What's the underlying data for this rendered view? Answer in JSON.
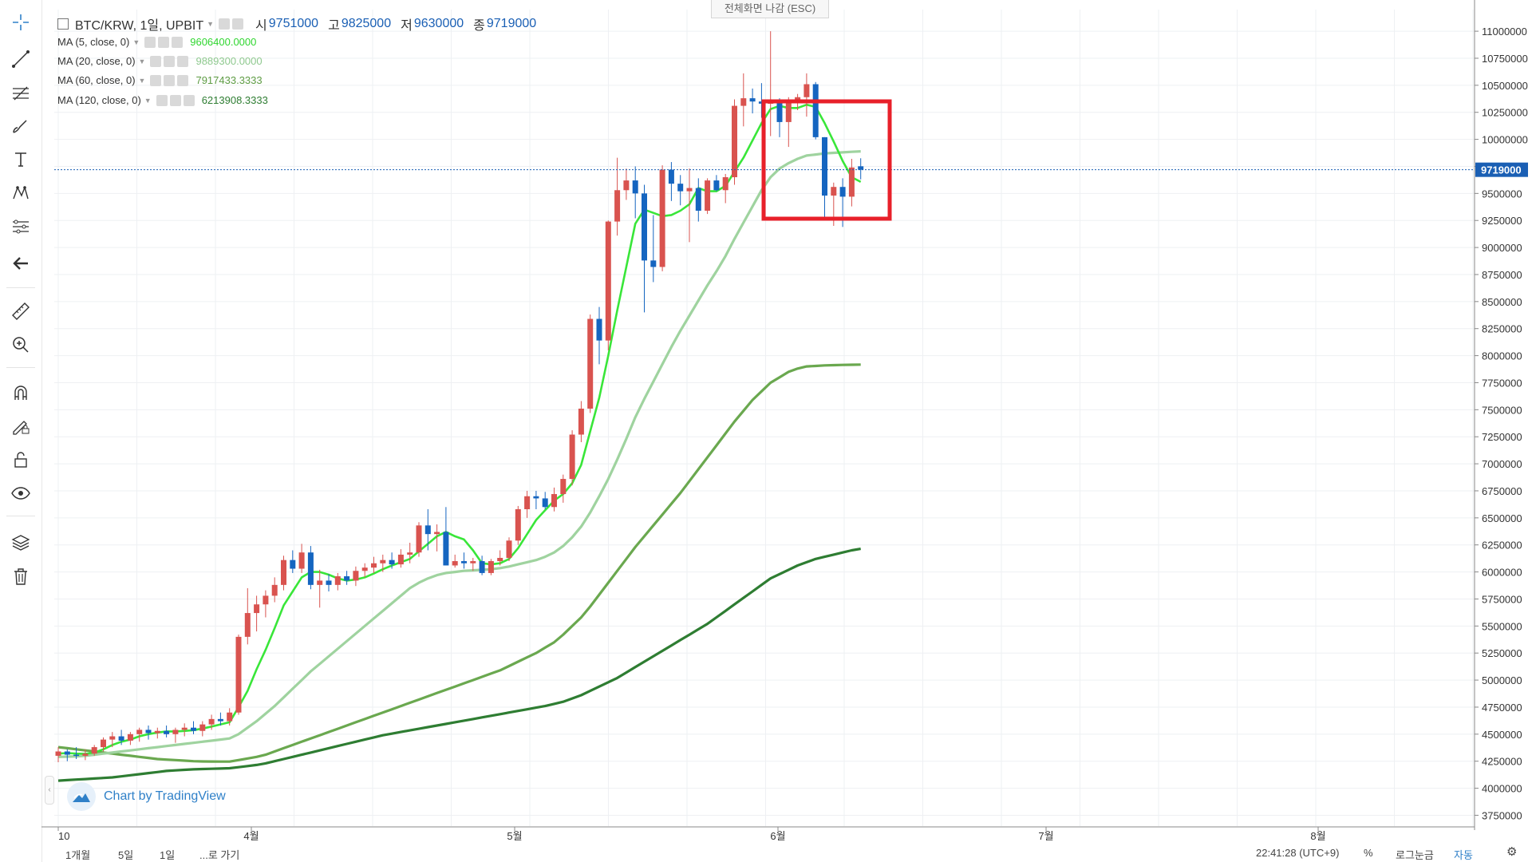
{
  "symbol_legend": {
    "title": "BTC/KRW, 1일, UPBIT",
    "open_label": "시",
    "open_value": "9751000",
    "high_label": "고",
    "high_value": "9825000",
    "low_label": "저",
    "low_value": "9630000",
    "close_label": "종",
    "close_value": "9719000"
  },
  "indicators": [
    {
      "label": "MA (5, close, 0)",
      "value": "9606400.0000",
      "color": "#39e639"
    },
    {
      "label": "MA (20, close, 0)",
      "value": "9889300.0000",
      "color": "#9fd39f"
    },
    {
      "label": "MA (60, close, 0)",
      "value": "7917433.3333",
      "color": "#6aa84f"
    },
    {
      "label": "MA (120, close, 0)",
      "value": "6213908.3333",
      "color": "#2e7d32"
    }
  ],
  "exit_fullscreen": "전체화면 나감 (ESC)",
  "watermark": "Chart by TradingView",
  "bottom": {
    "ranges": [
      "1개월",
      "5일",
      "1일",
      "...로 가기"
    ],
    "clock": "22:41:28 (UTC+9)",
    "percent": "%",
    "log": "로그눈금",
    "auto": "자동"
  },
  "colors": {
    "up": "#d9534f",
    "down": "#1565c0",
    "highlight_box": "#e8202a",
    "price_label_bg": "#1a5fb4"
  },
  "chart_data": {
    "type": "candlestick",
    "y_axis_ticks": [
      11000000,
      10750000,
      10500000,
      10250000,
      10000000,
      9750000,
      9500000,
      9250000,
      9000000,
      8750000,
      8500000,
      8250000,
      8000000,
      7750000,
      7500000,
      7250000,
      7000000,
      6750000,
      6500000,
      6250000,
      6000000,
      5750000,
      5500000,
      5250000,
      5000000,
      4750000,
      4500000,
      4250000,
      4000000,
      3750000
    ],
    "y_range": [
      3650000,
      11200000
    ],
    "x_labels": [
      "10",
      "4월",
      "5월",
      "6월",
      "7월",
      "8월"
    ],
    "current_price": 9719000,
    "current_price_label": "9719000",
    "candles": [
      [
        4300000,
        4380000,
        4240000,
        4340000
      ],
      [
        4340000,
        4360000,
        4250000,
        4310000
      ],
      [
        4310000,
        4380000,
        4270000,
        4300000
      ],
      [
        4300000,
        4360000,
        4260000,
        4320000
      ],
      [
        4320000,
        4400000,
        4300000,
        4380000
      ],
      [
        4380000,
        4470000,
        4340000,
        4450000
      ],
      [
        4450000,
        4520000,
        4380000,
        4480000
      ],
      [
        4480000,
        4540000,
        4400000,
        4440000
      ],
      [
        4440000,
        4520000,
        4400000,
        4500000
      ],
      [
        4500000,
        4560000,
        4430000,
        4540000
      ],
      [
        4540000,
        4580000,
        4450000,
        4510000
      ],
      [
        4510000,
        4560000,
        4460000,
        4530000
      ],
      [
        4530000,
        4580000,
        4470000,
        4500000
      ],
      [
        4500000,
        4560000,
        4420000,
        4540000
      ],
      [
        4540000,
        4600000,
        4480000,
        4560000
      ],
      [
        4560000,
        4620000,
        4500000,
        4530000
      ],
      [
        4530000,
        4620000,
        4480000,
        4590000
      ],
      [
        4590000,
        4680000,
        4540000,
        4640000
      ],
      [
        4640000,
        4700000,
        4580000,
        4620000
      ],
      [
        4620000,
        4740000,
        4580000,
        4700000
      ],
      [
        4700000,
        5420000,
        4680000,
        5400000
      ],
      [
        5400000,
        5850000,
        5330000,
        5620000
      ],
      [
        5620000,
        5780000,
        5450000,
        5700000
      ],
      [
        5700000,
        5830000,
        5580000,
        5780000
      ],
      [
        5780000,
        5950000,
        5720000,
        5880000
      ],
      [
        5880000,
        6150000,
        5830000,
        6110000
      ],
      [
        6110000,
        6200000,
        5990000,
        6030000
      ],
      [
        6030000,
        6260000,
        5990000,
        6180000
      ],
      [
        6180000,
        6240000,
        5840000,
        5880000
      ],
      [
        5880000,
        6020000,
        5670000,
        5920000
      ],
      [
        5920000,
        5980000,
        5820000,
        5880000
      ],
      [
        5880000,
        5990000,
        5830000,
        5960000
      ],
      [
        5960000,
        6010000,
        5880000,
        5920000
      ],
      [
        5920000,
        6050000,
        5870000,
        6010000
      ],
      [
        6010000,
        6080000,
        5950000,
        6040000
      ],
      [
        6040000,
        6140000,
        5990000,
        6080000
      ],
      [
        6080000,
        6160000,
        6000000,
        6110000
      ],
      [
        6110000,
        6180000,
        6030000,
        6070000
      ],
      [
        6070000,
        6210000,
        6040000,
        6160000
      ],
      [
        6160000,
        6270000,
        6080000,
        6180000
      ],
      [
        6180000,
        6460000,
        6140000,
        6430000
      ],
      [
        6430000,
        6580000,
        6200000,
        6350000
      ],
      [
        6350000,
        6440000,
        6190000,
        6370000
      ],
      [
        6370000,
        6600000,
        6060000,
        6060000
      ],
      [
        6060000,
        6160000,
        6040000,
        6100000
      ],
      [
        6100000,
        6180000,
        6030000,
        6080000
      ],
      [
        6080000,
        6130000,
        6010000,
        6100000
      ],
      [
        6100000,
        6150000,
        5970000,
        5990000
      ],
      [
        5990000,
        6120000,
        5970000,
        6100000
      ],
      [
        6100000,
        6200000,
        6060000,
        6130000
      ],
      [
        6130000,
        6320000,
        6100000,
        6290000
      ],
      [
        6290000,
        6610000,
        6250000,
        6580000
      ],
      [
        6580000,
        6750000,
        6500000,
        6700000
      ],
      [
        6700000,
        6750000,
        6580000,
        6680000
      ],
      [
        6680000,
        6740000,
        6580000,
        6600000
      ],
      [
        6600000,
        6780000,
        6560000,
        6720000
      ],
      [
        6720000,
        6900000,
        6640000,
        6860000
      ],
      [
        6860000,
        7310000,
        6800000,
        7270000
      ],
      [
        7270000,
        7580000,
        7200000,
        7510000
      ],
      [
        7510000,
        8380000,
        7470000,
        8340000
      ],
      [
        8340000,
        8450000,
        7920000,
        8140000
      ],
      [
        8140000,
        9250000,
        8050000,
        9240000
      ],
      [
        9240000,
        9830000,
        9110000,
        9530000
      ],
      [
        9530000,
        9730000,
        9440000,
        9620000
      ],
      [
        9620000,
        9750000,
        9270000,
        9500000
      ],
      [
        9500000,
        9580000,
        8400000,
        8880000
      ],
      [
        8880000,
        9300000,
        8680000,
        8820000
      ],
      [
        8820000,
        9760000,
        8780000,
        9720000
      ],
      [
        9720000,
        9790000,
        9430000,
        9590000
      ],
      [
        9590000,
        9670000,
        9390000,
        9520000
      ],
      [
        9520000,
        9730000,
        9050000,
        9550000
      ],
      [
        9550000,
        9640000,
        9240000,
        9340000
      ],
      [
        9340000,
        9640000,
        9310000,
        9620000
      ],
      [
        9620000,
        9670000,
        9520000,
        9530000
      ],
      [
        9530000,
        9680000,
        9410000,
        9650000
      ],
      [
        9650000,
        10370000,
        9580000,
        10310000
      ],
      [
        10310000,
        10610000,
        10120000,
        10380000
      ],
      [
        10380000,
        10470000,
        10240000,
        10350000
      ],
      [
        10350000,
        10520000,
        10200000,
        10330000
      ],
      [
        10330000,
        11000000,
        10030000,
        10340000
      ],
      [
        10340000,
        10380000,
        10020000,
        10160000
      ],
      [
        10160000,
        10390000,
        9930000,
        10340000
      ],
      [
        10340000,
        10420000,
        10270000,
        10390000
      ],
      [
        10390000,
        10610000,
        10210000,
        10510000
      ],
      [
        10510000,
        10530000,
        10000000,
        10020000
      ],
      [
        10020000,
        10020000,
        9250000,
        9480000
      ],
      [
        9480000,
        9600000,
        9200000,
        9560000
      ],
      [
        9560000,
        9640000,
        9190000,
        9470000
      ],
      [
        9470000,
        9820000,
        9380000,
        9740000
      ],
      [
        9751000,
        9825000,
        9630000,
        9719000
      ]
    ],
    "ma5": [
      4320000,
      4325000,
      4320000,
      4318000,
      4330000,
      4360000,
      4400000,
      4430000,
      4450000,
      4480000,
      4500000,
      4515000,
      4525000,
      4525000,
      4530000,
      4537000,
      4552000,
      4570000,
      4590000,
      4610000,
      4750000,
      4900000,
      5100000,
      5280000,
      5480000,
      5690000,
      5820000,
      5950000,
      6000000,
      6000000,
      5975000,
      5940000,
      5920000,
      5930000,
      5950000,
      5985000,
      6025000,
      6060000,
      6090000,
      6120000,
      6190000,
      6260000,
      6330000,
      6370000,
      6330000,
      6300000,
      6200000,
      6080000,
      6070000,
      6080000,
      6120000,
      6220000,
      6350000,
      6480000,
      6570000,
      6660000,
      6720000,
      6820000,
      6990000,
      7300000,
      7610000,
      8000000,
      8420000,
      8820000,
      9220000,
      9350000,
      9320000,
      9290000,
      9300000,
      9340000,
      9400000,
      9550000,
      9520000,
      9520000,
      9570000,
      9700000,
      9830000,
      9990000,
      10150000,
      10280000,
      10310000,
      10290000,
      10290000,
      10320000,
      10300000,
      10150000,
      9980000,
      9800000,
      9650000,
      9606400
    ],
    "ma20": [
      4290000,
      4292000,
      4295000,
      4300000,
      4310000,
      4320000,
      4330000,
      4340000,
      4350000,
      4360000,
      4370000,
      4380000,
      4390000,
      4400000,
      4410000,
      4420000,
      4430000,
      4440000,
      4450000,
      4460000,
      4500000,
      4560000,
      4620000,
      4690000,
      4760000,
      4840000,
      4920000,
      5000000,
      5080000,
      5150000,
      5220000,
      5290000,
      5360000,
      5430000,
      5500000,
      5570000,
      5640000,
      5710000,
      5780000,
      5850000,
      5900000,
      5940000,
      5970000,
      5990000,
      6000000,
      6010000,
      6015000,
      6020000,
      6025000,
      6035000,
      6050000,
      6070000,
      6090000,
      6110000,
      6140000,
      6180000,
      6240000,
      6320000,
      6420000,
      6550000,
      6700000,
      6860000,
      7040000,
      7230000,
      7430000,
      7600000,
      7760000,
      7920000,
      8080000,
      8230000,
      8370000,
      8510000,
      8650000,
      8780000,
      8920000,
      9080000,
      9230000,
      9380000,
      9530000,
      9650000,
      9730000,
      9780000,
      9820000,
      9850000,
      9860000,
      9870000,
      9875000,
      9880000,
      9885000,
      9889300
    ],
    "ma60": [
      4380000,
      4370000,
      4360000,
      4350000,
      4340000,
      4330000,
      4320000,
      4310000,
      4300000,
      4290000,
      4280000,
      4270000,
      4265000,
      4260000,
      4255000,
      4250000,
      4248000,
      4247000,
      4246000,
      4246000,
      4260000,
      4275000,
      4290000,
      4310000,
      4340000,
      4370000,
      4400000,
      4430000,
      4460000,
      4490000,
      4520000,
      4550000,
      4580000,
      4610000,
      4640000,
      4670000,
      4700000,
      4730000,
      4760000,
      4790000,
      4820000,
      4850000,
      4880000,
      4910000,
      4940000,
      4970000,
      5000000,
      5030000,
      5060000,
      5090000,
      5130000,
      5170000,
      5210000,
      5250000,
      5300000,
      5350000,
      5420000,
      5500000,
      5580000,
      5680000,
      5790000,
      5900000,
      6010000,
      6120000,
      6230000,
      6330000,
      6430000,
      6530000,
      6630000,
      6730000,
      6840000,
      6950000,
      7060000,
      7170000,
      7280000,
      7390000,
      7490000,
      7590000,
      7670000,
      7750000,
      7800000,
      7850000,
      7880000,
      7900000,
      7905000,
      7910000,
      7912000,
      7914000,
      7916000,
      7917433
    ],
    "ma120": [
      4070000,
      4075000,
      4080000,
      4085000,
      4090000,
      4095000,
      4100000,
      4110000,
      4120000,
      4130000,
      4140000,
      4150000,
      4160000,
      4165000,
      4170000,
      4175000,
      4178000,
      4180000,
      4182000,
      4185000,
      4195000,
      4205000,
      4215000,
      4230000,
      4250000,
      4270000,
      4290000,
      4310000,
      4330000,
      4350000,
      4370000,
      4390000,
      4410000,
      4430000,
      4450000,
      4470000,
      4490000,
      4505000,
      4520000,
      4535000,
      4550000,
      4565000,
      4580000,
      4595000,
      4610000,
      4625000,
      4640000,
      4655000,
      4670000,
      4685000,
      4700000,
      4715000,
      4730000,
      4745000,
      4760000,
      4780000,
      4800000,
      4830000,
      4860000,
      4900000,
      4940000,
      4980000,
      5020000,
      5070000,
      5120000,
      5170000,
      5220000,
      5270000,
      5320000,
      5370000,
      5420000,
      5470000,
      5520000,
      5580000,
      5640000,
      5700000,
      5760000,
      5820000,
      5880000,
      5940000,
      5980000,
      6020000,
      6060000,
      6090000,
      6120000,
      6140000,
      6160000,
      6180000,
      6200000,
      6213908
    ]
  }
}
